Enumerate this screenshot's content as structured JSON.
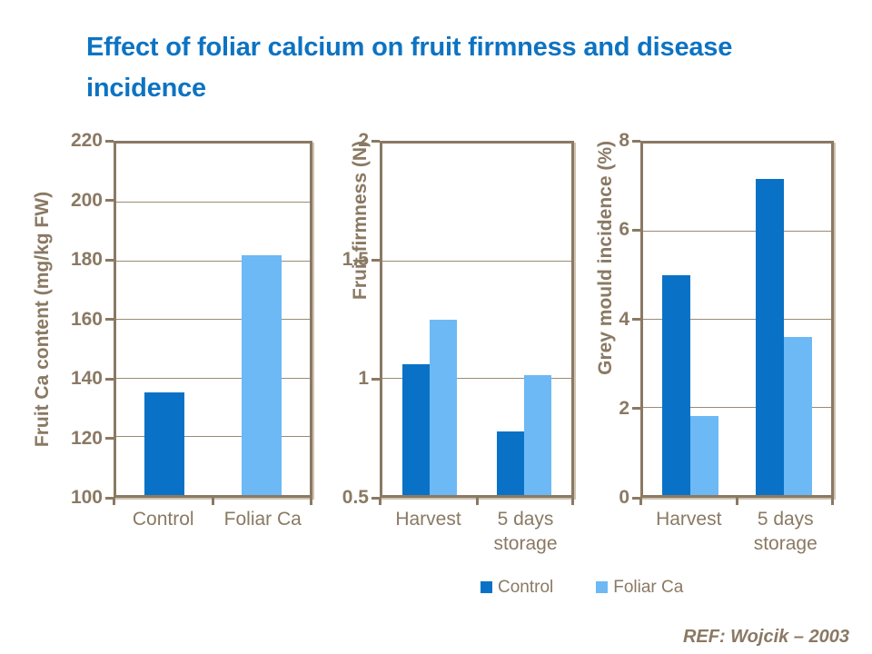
{
  "title": "Effect of foliar calcium on fruit firmness and disease incidence",
  "reference": "REF:  Wojcik – 2003",
  "colors": {
    "title_blue": "#0D73C2",
    "control": "#0A72C6",
    "foliar_ca": "#6CB9F5",
    "axis_brown": "#8A7963"
  },
  "legend": {
    "items": [
      {
        "label": "Control",
        "color": "control"
      },
      {
        "label": "Foliar Ca",
        "color": "foliar_ca"
      }
    ]
  },
  "chart_data": [
    {
      "type": "bar",
      "title": "",
      "ylabel": "Fruit Ca content (mg/kg FW)",
      "xlabel": "",
      "ylim": [
        100,
        220
      ],
      "yticks": [
        100,
        120,
        140,
        160,
        180,
        200,
        220
      ],
      "grid": true,
      "legend_position": "none",
      "categories": [
        "Control",
        "Foliar Ca"
      ],
      "series": [
        {
          "name": "Control",
          "color": "control",
          "values": [
            135,
            null
          ]
        },
        {
          "name": "Foliar Ca",
          "color": "foliar_ca",
          "values": [
            null,
            182
          ]
        }
      ]
    },
    {
      "type": "bar",
      "title": "",
      "ylabel": "Fruit firmness (N)",
      "xlabel": "",
      "ylim": [
        0.5,
        2
      ],
      "yticks": [
        0.5,
        1,
        1.5,
        2
      ],
      "grid": true,
      "legend_position": "bottom-shared",
      "categories": [
        "Harvest",
        "5 days\nstorage"
      ],
      "series": [
        {
          "name": "Control",
          "color": "control",
          "values": [
            1.06,
            0.77
          ]
        },
        {
          "name": "Foliar Ca",
          "color": "foliar_ca",
          "values": [
            1.25,
            1.01
          ]
        }
      ]
    },
    {
      "type": "bar",
      "title": "",
      "ylabel": "Grey mould incidence (%)",
      "xlabel": "",
      "ylim": [
        0,
        8
      ],
      "yticks": [
        0,
        2,
        4,
        6,
        8
      ],
      "grid": true,
      "legend_position": "bottom-shared",
      "categories": [
        "Harvest",
        "5 days\nstorage"
      ],
      "series": [
        {
          "name": "Control",
          "color": "control",
          "values": [
            5,
            7.2
          ]
        },
        {
          "name": "Foliar Ca",
          "color": "foliar_ca",
          "values": [
            1.8,
            3.6
          ]
        }
      ]
    }
  ]
}
